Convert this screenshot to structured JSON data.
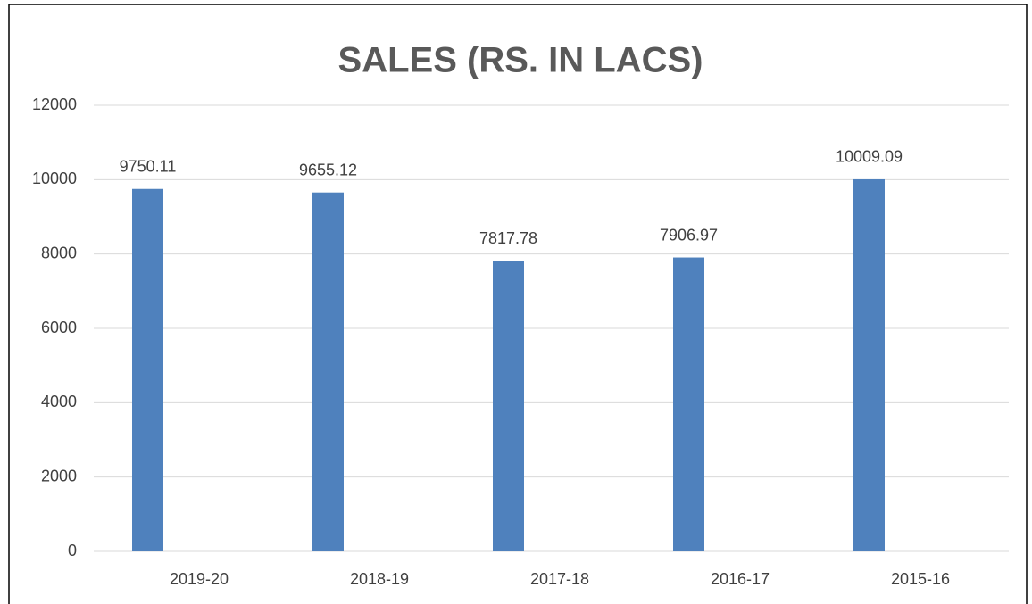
{
  "chart_data": {
    "type": "bar",
    "title": "SALES (RS. IN LACS)",
    "categories": [
      "2019-20",
      "2018-19",
      "2017-18",
      "2016-17",
      "2015-16"
    ],
    "values": [
      9750.11,
      9655.12,
      7817.78,
      7906.97,
      10009.09
    ],
    "color": "#4f81bd",
    "ylim": [
      0,
      12000
    ],
    "yticks": [
      0,
      2000,
      4000,
      6000,
      8000,
      10000,
      12000
    ],
    "grid": true
  }
}
